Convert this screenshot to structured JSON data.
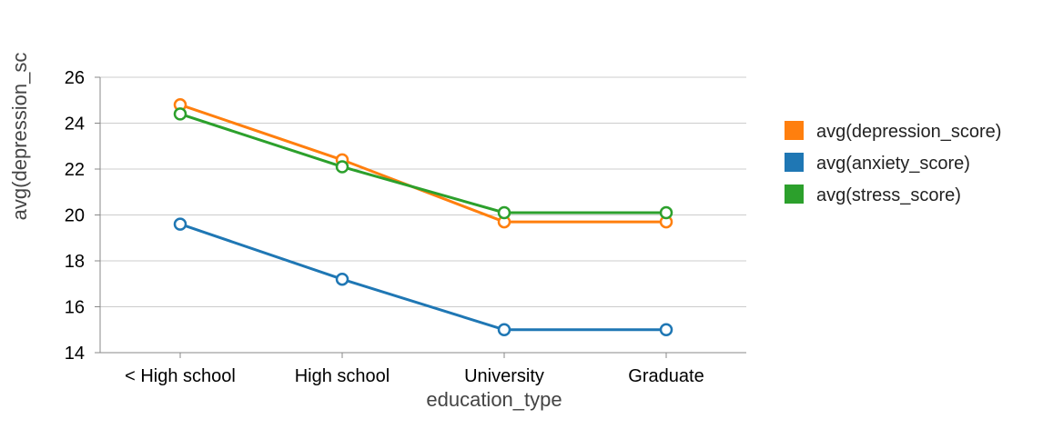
{
  "chart_data": {
    "type": "line",
    "categories": [
      "< High school",
      "High school",
      "University",
      "Graduate"
    ],
    "xlabel": "education_type",
    "ylabel": "avg(depression_sc",
    "ylim": [
      14,
      26
    ],
    "yticks": [
      14,
      16,
      18,
      20,
      22,
      24,
      26
    ],
    "grid": true,
    "legend_position": "right",
    "series": [
      {
        "name": "avg(depression_score)",
        "color": "#ff7f0e",
        "values": [
          24.8,
          22.4,
          19.7,
          19.7
        ]
      },
      {
        "name": "avg(anxiety_score)",
        "color": "#1f77b4",
        "values": [
          19.6,
          17.2,
          15.0,
          15.0
        ]
      },
      {
        "name": "avg(stress_score)",
        "color": "#2ca02c",
        "values": [
          24.4,
          22.1,
          20.1,
          20.1
        ]
      }
    ]
  }
}
